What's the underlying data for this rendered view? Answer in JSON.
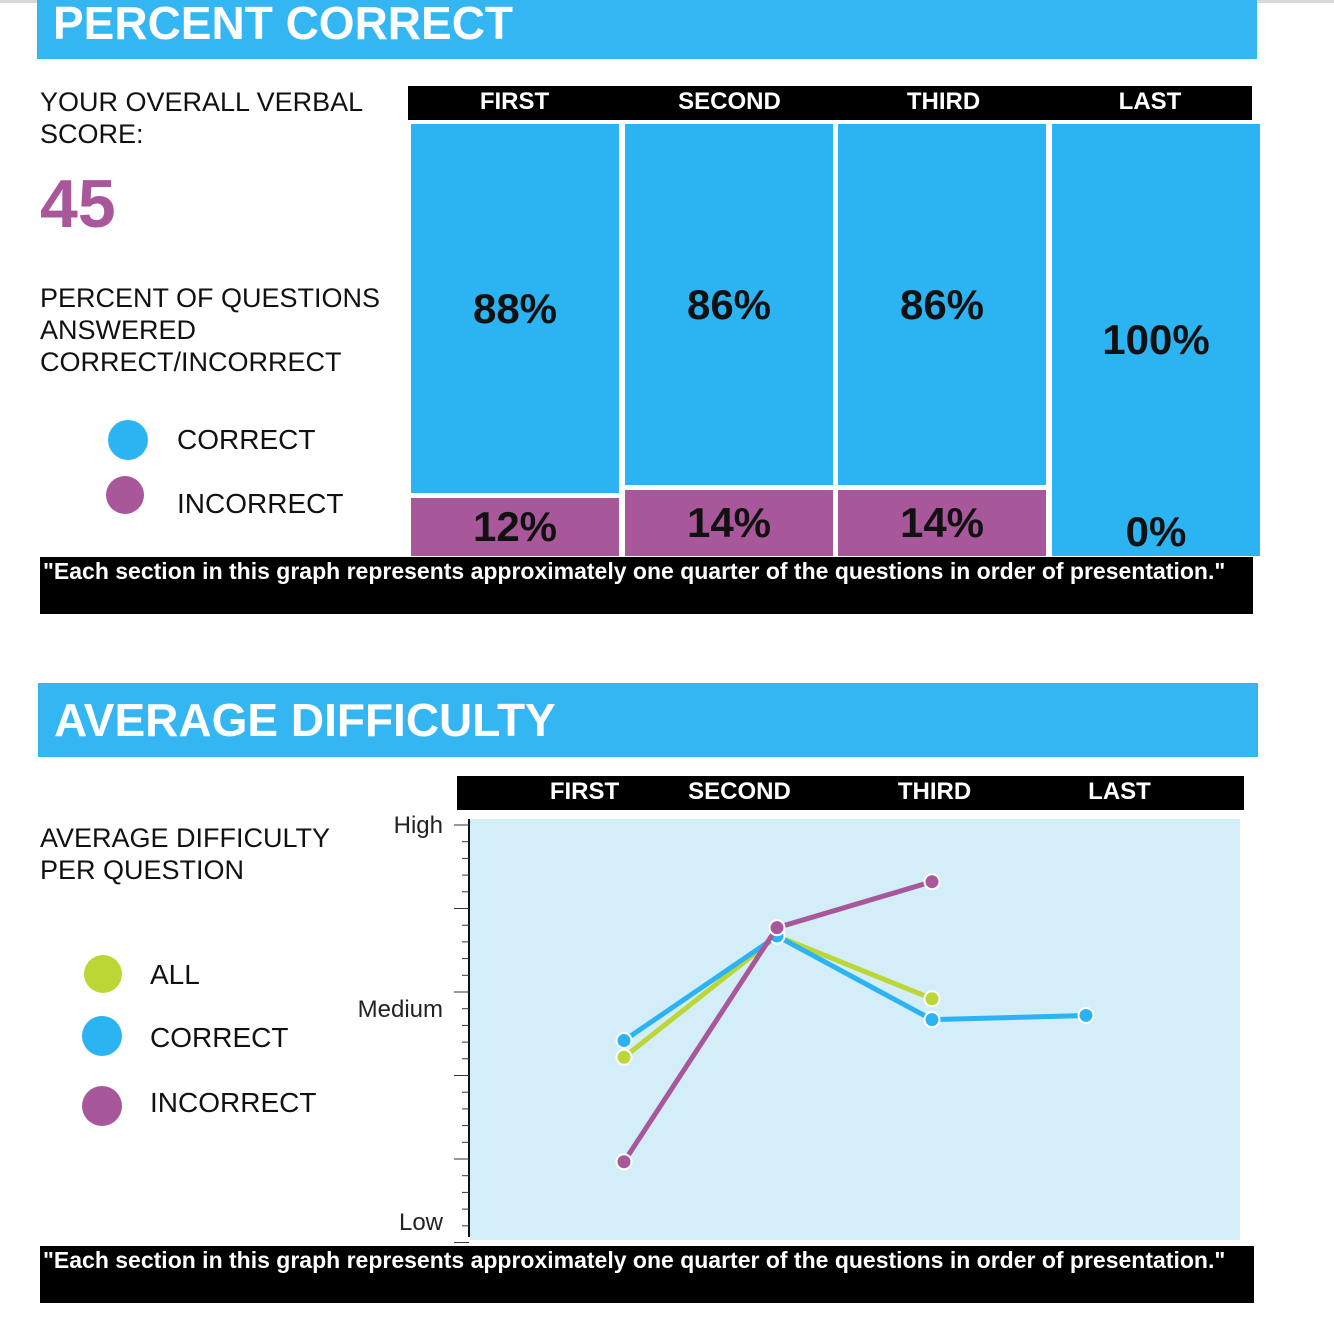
{
  "percent_correct": {
    "title": "PERCENT CORRECT",
    "score_label": "YOUR OVERALL VERBAL SCORE:",
    "score_value": "45",
    "description": "PERCENT OF QUESTIONS ANSWERED CORRECT/INCORRECT",
    "legend": {
      "correct": "CORRECT",
      "incorrect": "INCORRECT"
    },
    "footnote": "\"Each section in this graph represents approximately one quarter of the questions in order of presentation.\""
  },
  "average_difficulty": {
    "title": "AVERAGE DIFFICULTY",
    "description": "AVERAGE DIFFICULTY PER QUESTION",
    "legend": {
      "all": "ALL",
      "correct": "CORRECT",
      "incorrect": "INCORRECT"
    },
    "footnote": "\"Each section in this graph represents approximately one quarter of the questions in order of presentation.\""
  },
  "colors": {
    "blue": "#2bb3f2",
    "purple": "#a8589a",
    "green": "#bcd636",
    "plot_bg": "#d3eef9"
  },
  "chart_data": [
    {
      "type": "bar",
      "title": "PERCENT CORRECT",
      "categories": [
        "FIRST",
        "SECOND",
        "THIRD",
        "LAST"
      ],
      "series": [
        {
          "name": "CORRECT",
          "values": [
            88,
            86,
            86,
            100
          ],
          "labels": [
            "88%",
            "86%",
            "86%",
            "100%"
          ]
        },
        {
          "name": "INCORRECT",
          "values": [
            12,
            14,
            14,
            0
          ],
          "labels": [
            "12%",
            "14%",
            "14%",
            "0%"
          ]
        }
      ],
      "ylim": [
        0,
        100
      ]
    },
    {
      "type": "line",
      "title": "AVERAGE DIFFICULTY",
      "categories": [
        "FIRST",
        "SECOND",
        "THIRD",
        "LAST"
      ],
      "y_tick_labels": [
        "High",
        "Medium",
        "Low"
      ],
      "ylim": [
        0,
        1
      ],
      "series": [
        {
          "name": "ALL",
          "values": [
            0.43,
            0.72,
            0.57,
            null
          ]
        },
        {
          "name": "CORRECT",
          "values": [
            0.47,
            0.72,
            0.52,
            0.53
          ]
        },
        {
          "name": "INCORRECT",
          "values": [
            0.18,
            0.74,
            0.85,
            null
          ]
        }
      ]
    }
  ]
}
